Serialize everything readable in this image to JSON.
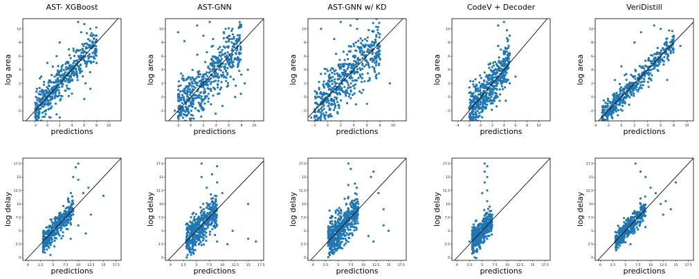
{
  "chart_data": [
    {
      "type": "scatter",
      "title": "AST- XGBoost",
      "xlabel": "predictions",
      "ylabel": "log area",
      "xlim": [
        -4,
        12
      ],
      "ylim": [
        -3.5,
        11.5
      ],
      "xticks": [
        -2,
        0,
        2,
        4,
        6,
        8,
        10
      ],
      "yticks": [
        -2,
        0,
        2,
        4,
        6,
        8,
        10
      ],
      "color": "#1f77b4",
      "identity_line": true,
      "cloud": {
        "xrange": [
          -2,
          8
        ],
        "spread": 1.2,
        "n": 500
      },
      "points": [
        [
          0.5,
          -3
        ],
        [
          2,
          -3
        ],
        [
          4,
          0.5
        ],
        [
          6,
          -0.3
        ],
        [
          7,
          1.2
        ],
        [
          8,
          5
        ],
        [
          1.5,
          6
        ],
        [
          2,
          8
        ],
        [
          5,
          11
        ],
        [
          6,
          10.7
        ],
        [
          7,
          10
        ],
        [
          3.5,
          7
        ],
        [
          5.5,
          9.5
        ],
        [
          -1,
          3
        ],
        [
          0,
          5
        ]
      ]
    },
    {
      "type": "scatter",
      "title": "AST-GNN",
      "xlabel": "predictions",
      "ylabel": "log area",
      "xlim": [
        -4,
        11.5
      ],
      "ylim": [
        -3.5,
        11.5
      ],
      "xticks": [
        -2,
        0,
        2,
        4,
        6,
        8,
        10
      ],
      "yticks": [
        -2,
        0,
        2,
        4,
        6,
        8,
        10
      ],
      "color": "#1f77b4",
      "identity_line": true,
      "cloud": {
        "xrange": [
          -2,
          8
        ],
        "spread": 2.1,
        "n": 550
      },
      "points": [
        [
          -2,
          9.5
        ],
        [
          -1,
          8.2
        ],
        [
          1,
          10.5
        ],
        [
          2,
          9
        ],
        [
          3,
          11
        ],
        [
          5,
          -1.3
        ],
        [
          7,
          0
        ],
        [
          8.5,
          2
        ],
        [
          9,
          4
        ],
        [
          5.5,
          10
        ],
        [
          6,
          8.5
        ],
        [
          -2.5,
          -2
        ]
      ]
    },
    {
      "type": "scatter",
      "title": "AST-GNN w/ KD",
      "xlabel": "predictions",
      "ylabel": "log area",
      "xlim": [
        -3,
        12
      ],
      "ylim": [
        -3.5,
        11.5
      ],
      "xticks": [
        -2,
        0,
        2,
        4,
        6,
        8,
        10
      ],
      "yticks": [
        -2,
        0,
        2,
        4,
        6,
        8,
        10
      ],
      "color": "#1f77b4",
      "identity_line": true,
      "cloud": {
        "xrange": [
          -2,
          8
        ],
        "spread": 2,
        "n": 550
      },
      "points": [
        [
          -1,
          10
        ],
        [
          2,
          11
        ],
        [
          3.5,
          10.5
        ],
        [
          4.5,
          10
        ],
        [
          7,
          7
        ],
        [
          8,
          5.5
        ],
        [
          9.5,
          2
        ],
        [
          6,
          -1
        ],
        [
          -2.5,
          -3
        ],
        [
          1,
          8.5
        ]
      ]
    },
    {
      "type": "scatter",
      "title": "CodeV + Decoder",
      "xlabel": "predictions",
      "ylabel": "log area",
      "xlim": [
        -5,
        12
      ],
      "ylim": [
        -3.5,
        11.5
      ],
      "xticks": [
        -4,
        -2,
        0,
        2,
        4,
        6,
        8,
        10
      ],
      "yticks": [
        -2,
        0,
        2,
        4,
        6,
        8,
        10
      ],
      "color": "#1f77b4",
      "identity_line": true,
      "cloud": {
        "xrange": [
          -2,
          5
        ],
        "spread": 1.6,
        "n": 550
      },
      "points": [
        [
          4,
          11
        ],
        [
          3,
          10.5
        ],
        [
          4.5,
          9.8
        ],
        [
          5,
          9
        ],
        [
          -2,
          -1.5
        ],
        [
          -1,
          -1.5
        ],
        [
          5,
          2
        ],
        [
          6,
          3
        ],
        [
          3,
          7.5
        ]
      ]
    },
    {
      "type": "scatter",
      "title": "VeriDistill",
      "xlabel": "predictions",
      "ylabel": "log area",
      "xlim": [
        -4,
        11
      ],
      "ylim": [
        -3.5,
        11.5
      ],
      "xticks": [
        -4,
        -2,
        0,
        2,
        4,
        6,
        8,
        10
      ],
      "yticks": [
        -2,
        0,
        2,
        4,
        6,
        8,
        10
      ],
      "color": "#1f77b4",
      "identity_line": true,
      "cloud": {
        "xrange": [
          -3,
          8
        ],
        "spread": 0.8,
        "n": 500
      },
      "points": [
        [
          2,
          8
        ],
        [
          3,
          9.5
        ],
        [
          5,
          10.5
        ],
        [
          6,
          10
        ],
        [
          8,
          9
        ],
        [
          9,
          7.5
        ],
        [
          7,
          2.5
        ],
        [
          -1,
          2.5
        ],
        [
          0,
          4.5
        ]
      ]
    },
    {
      "type": "scatter",
      "title": "",
      "xlabel": "predictions",
      "ylabel": "log delay",
      "xlim": [
        -1,
        18.5
      ],
      "ylim": [
        -0.5,
        18.5
      ],
      "xticks": [
        0,
        2.5,
        5,
        7.5,
        10,
        12.5,
        15,
        17.5
      ],
      "yticks": [
        0,
        2.5,
        5,
        7.5,
        10,
        12.5,
        15,
        17.5
      ],
      "color": "#1f77b4",
      "identity_line": true,
      "cloud": {
        "xrange": [
          3,
          9
        ],
        "spread": 1.1,
        "n": 380
      },
      "points": [
        [
          10,
          17.5
        ],
        [
          9.5,
          16.8
        ],
        [
          9,
          15
        ],
        [
          10,
          14.5
        ],
        [
          11,
          12
        ],
        [
          12,
          13
        ],
        [
          15,
          11.5
        ],
        [
          12.5,
          8
        ],
        [
          10,
          6
        ],
        [
          9,
          10
        ],
        [
          8,
          11
        ],
        [
          11.5,
          4.5
        ],
        [
          8.5,
          3.5
        ]
      ]
    },
    {
      "type": "scatter",
      "title": "",
      "xlabel": "predictions",
      "ylabel": "log delay",
      "xlim": [
        -1,
        18
      ],
      "ylim": [
        -0.5,
        18.5
      ],
      "xticks": [
        0,
        2.5,
        5,
        7.5,
        10,
        12.5,
        15,
        17.5
      ],
      "yticks": [
        0,
        2.5,
        5,
        7.5,
        10,
        12.5,
        15,
        17.5
      ],
      "color": "#1f77b4",
      "identity_line": true,
      "cloud": {
        "xrange": [
          3,
          9
        ],
        "spread": 1.6,
        "n": 480
      },
      "points": [
        [
          6,
          17.5
        ],
        [
          9,
          17
        ],
        [
          6,
          15
        ],
        [
          8,
          15.5
        ],
        [
          9,
          14
        ],
        [
          7,
          13
        ],
        [
          10,
          12
        ],
        [
          15,
          10
        ],
        [
          16.5,
          3
        ],
        [
          15,
          3.5
        ],
        [
          11,
          2.5
        ],
        [
          9,
          3
        ],
        [
          12,
          5
        ]
      ]
    },
    {
      "type": "scatter",
      "title": "",
      "xlabel": "predictions",
      "ylabel": "log delay",
      "xlim": [
        -1,
        18.5
      ],
      "ylim": [
        -0.5,
        18.5
      ],
      "xticks": [
        0,
        2.5,
        5,
        7.5,
        10,
        12.5,
        15,
        17.5
      ],
      "yticks": [
        0,
        2.5,
        5,
        7.5,
        10,
        12.5,
        15,
        17.5
      ],
      "color": "#1f77b4",
      "identity_line": true,
      "cloud": {
        "xrange": [
          3,
          9
        ],
        "spread": 1.8,
        "n": 520
      },
      "points": [
        [
          7,
          17.5
        ],
        [
          7.5,
          16.5
        ],
        [
          12,
          16
        ],
        [
          11.5,
          15
        ],
        [
          13,
          12
        ],
        [
          14,
          9
        ],
        [
          15,
          5
        ],
        [
          14,
          6
        ],
        [
          12,
          3
        ],
        [
          11,
          4
        ],
        [
          7,
          13.5
        ],
        [
          9,
          10
        ]
      ]
    },
    {
      "type": "scatter",
      "title": "",
      "xlabel": "predictions",
      "ylabel": "log delay",
      "xlim": [
        -1,
        18.5
      ],
      "ylim": [
        -0.5,
        18.5
      ],
      "xticks": [
        0,
        2.5,
        5,
        7.5,
        10,
        12.5,
        15,
        17.5
      ],
      "yticks": [
        0,
        2.5,
        5,
        7.5,
        10,
        12.5,
        15,
        17.5
      ],
      "color": "#1f77b4",
      "identity_line": true,
      "cloud": {
        "xrange": [
          3,
          7
        ],
        "spread": 1.2,
        "n": 420
      },
      "points": [
        [
          5.5,
          17.5
        ],
        [
          6,
          17
        ],
        [
          5.5,
          16
        ],
        [
          6,
          15
        ],
        [
          5.5,
          14
        ],
        [
          6,
          12.5
        ],
        [
          5,
          12
        ],
        [
          6,
          10.5
        ],
        [
          6.5,
          9.5
        ],
        [
          7,
          8
        ],
        [
          3,
          3.5
        ],
        [
          2.5,
          3
        ]
      ]
    },
    {
      "type": "scatter",
      "title": "",
      "xlabel": "predictions",
      "ylabel": "log delay",
      "xlim": [
        -1,
        18.5
      ],
      "ylim": [
        -0.5,
        18.5
      ],
      "xticks": [
        0,
        2.5,
        5,
        7.5,
        10,
        12.5,
        15,
        17.5
      ],
      "yticks": [
        0,
        2.5,
        5,
        7.5,
        10,
        12.5,
        15,
        17.5
      ],
      "color": "#1f77b4",
      "identity_line": true,
      "cloud": {
        "xrange": [
          3,
          9
        ],
        "spread": 0.9,
        "n": 380
      },
      "points": [
        [
          7,
          17.5
        ],
        [
          8,
          16
        ],
        [
          9,
          15
        ],
        [
          10,
          13
        ],
        [
          11,
          12
        ],
        [
          12,
          10
        ],
        [
          13,
          10.5
        ],
        [
          14,
          9
        ],
        [
          15,
          14
        ],
        [
          12.5,
          8
        ],
        [
          6,
          2.5
        ],
        [
          8,
          11
        ]
      ]
    }
  ]
}
